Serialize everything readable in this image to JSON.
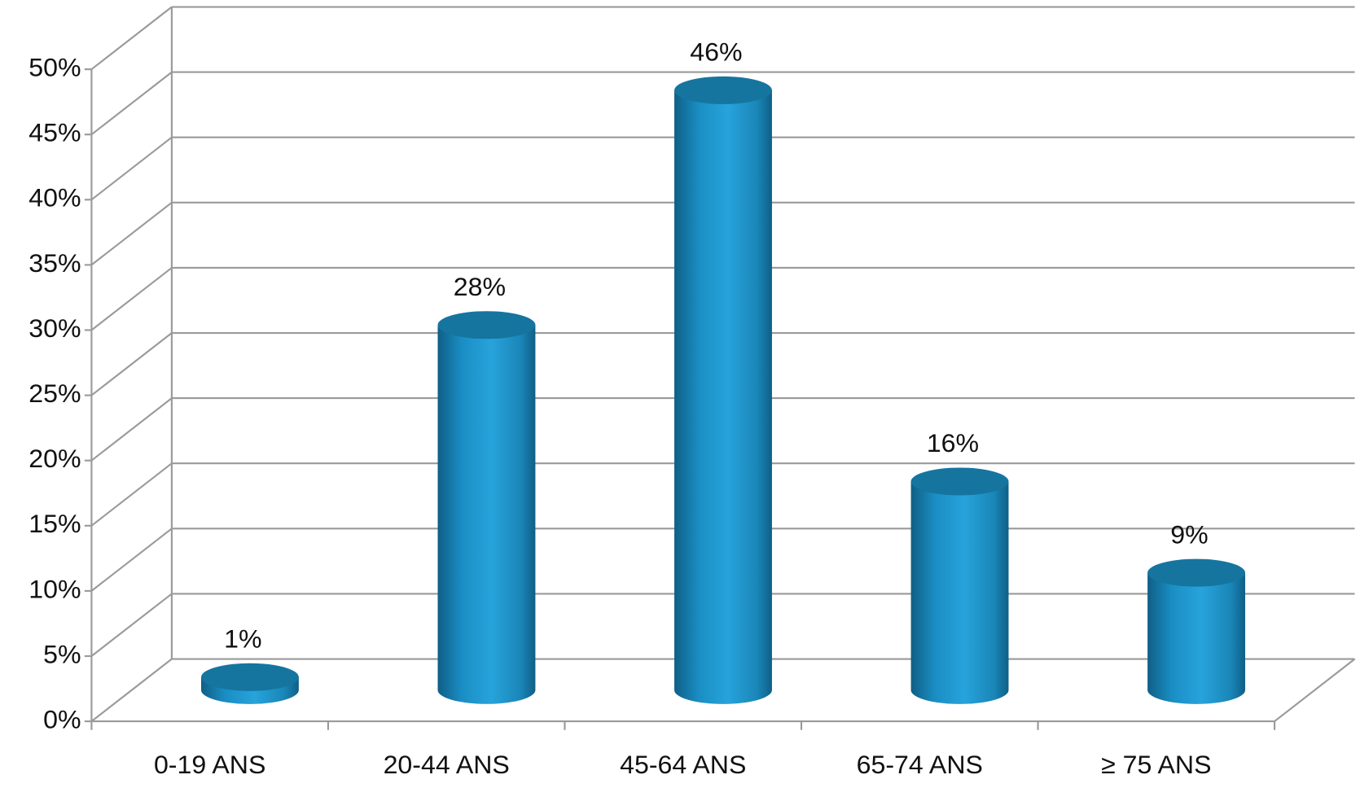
{
  "chart_data": {
    "type": "bar3d",
    "categories": [
      "0-19 ANS",
      "20-44 ANS",
      "45-64 ANS",
      "65-74 ANS",
      "≥ 75 ANS"
    ],
    "values": [
      1,
      28,
      46,
      16,
      9
    ],
    "value_labels": [
      "1%",
      "28%",
      "46%",
      "16%",
      "9%"
    ],
    "color": "#1a8ec4",
    "ylim": [
      0,
      50
    ],
    "yticks": [
      {
        "value": 0,
        "label": "0%"
      },
      {
        "value": 5,
        "label": "5%"
      },
      {
        "value": 10,
        "label": "10%"
      },
      {
        "value": 15,
        "label": "15%"
      },
      {
        "value": 20,
        "label": "20%"
      },
      {
        "value": 25,
        "label": "25%"
      },
      {
        "value": 30,
        "label": "30%"
      },
      {
        "value": 35,
        "label": "35%"
      },
      {
        "value": 40,
        "label": "40%"
      },
      {
        "value": 45,
        "label": "45%"
      },
      {
        "value": 50,
        "label": "50%"
      }
    ],
    "grid": true
  }
}
